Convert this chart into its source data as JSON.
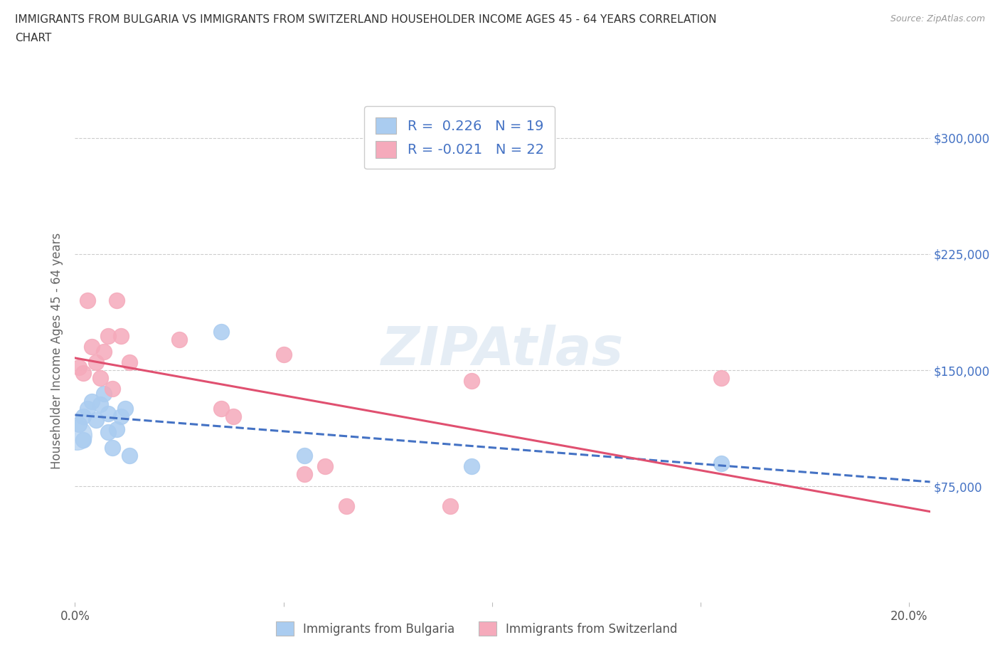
{
  "title_line1": "IMMIGRANTS FROM BULGARIA VS IMMIGRANTS FROM SWITZERLAND HOUSEHOLDER INCOME AGES 45 - 64 YEARS CORRELATION",
  "title_line2": "CHART",
  "source": "Source: ZipAtlas.com",
  "ylabel": "Householder Income Ages 45 - 64 years",
  "xlim": [
    0.0,
    0.205
  ],
  "ylim": [
    0,
    325000
  ],
  "yticks": [
    75000,
    150000,
    225000,
    300000
  ],
  "ytick_labels": [
    "$75,000",
    "$150,000",
    "$225,000",
    "$300,000"
  ],
  "xticks": [
    0.0,
    0.05,
    0.1,
    0.15,
    0.2
  ],
  "xtick_labels": [
    "0.0%",
    "",
    "",
    "",
    "20.0%"
  ],
  "legend_R_bulgaria": "0.226",
  "legend_N_bulgaria": "19",
  "legend_R_switzerland": "-0.021",
  "legend_N_switzerland": "22",
  "bulgaria_color": "#aaccf0",
  "switzerland_color": "#f5aabb",
  "bulgaria_line_color": "#4472c4",
  "switzerland_line_color": "#e05070",
  "bulgaria_scatter_x": [
    0.001,
    0.002,
    0.002,
    0.003,
    0.004,
    0.005,
    0.006,
    0.007,
    0.008,
    0.008,
    0.009,
    0.01,
    0.011,
    0.012,
    0.013,
    0.035,
    0.055,
    0.095,
    0.155
  ],
  "bulgaria_scatter_y": [
    115000,
    120000,
    105000,
    125000,
    130000,
    118000,
    128000,
    135000,
    122000,
    110000,
    100000,
    112000,
    120000,
    125000,
    95000,
    175000,
    95000,
    88000,
    90000
  ],
  "switzerland_scatter_x": [
    0.001,
    0.002,
    0.003,
    0.004,
    0.005,
    0.006,
    0.007,
    0.008,
    0.009,
    0.01,
    0.011,
    0.013,
    0.025,
    0.035,
    0.038,
    0.05,
    0.055,
    0.06,
    0.065,
    0.09,
    0.095,
    0.155
  ],
  "switzerland_scatter_y": [
    152000,
    148000,
    195000,
    165000,
    155000,
    145000,
    162000,
    172000,
    138000,
    195000,
    172000,
    155000,
    170000,
    125000,
    120000,
    160000,
    83000,
    88000,
    62000,
    62000,
    143000,
    145000
  ],
  "watermark": "ZIPAtlas",
  "background_color": "#ffffff",
  "grid_color": "#cccccc",
  "ylabel_color": "#666666",
  "ytick_label_color": "#4472c4",
  "title_color": "#333333"
}
